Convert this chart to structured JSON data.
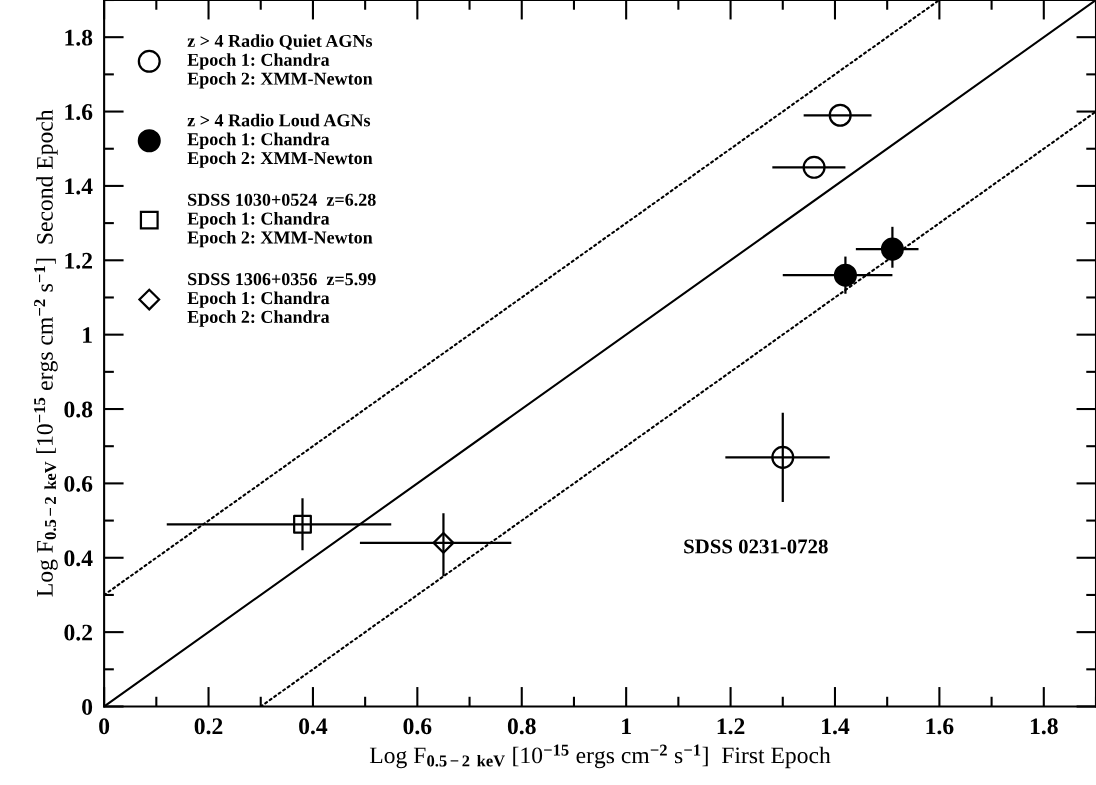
{
  "chart_data": {
    "type": "scatter",
    "xlabel": "Log F$_{0.5−2}$ $_{keV}$ [10$^{−15}$ ergs cm$^{−2}$ s$^{−1}$]  First Epoch",
    "ylabel": "Log F$_{0.5−2}$ $_{keV}$ [10$^{−15}$ ergs cm$^{−2}$ s$^{−1}$]  Second Epoch",
    "xlim": [
      0,
      1.9
    ],
    "ylim": [
      0,
      1.9
    ],
    "xticks": [
      0,
      0.2,
      0.4,
      0.6,
      0.8,
      1,
      1.2,
      1.4,
      1.6,
      1.8
    ],
    "yticks": [
      0,
      0.2,
      0.4,
      0.6,
      0.8,
      1,
      1.2,
      1.4,
      1.6,
      1.8
    ],
    "grid": false,
    "legend": "top left",
    "annotations": [
      "SDSS 0231-0728"
    ],
    "series": [
      {
        "name": "z > 4 Radio Quiet AGNs\nEpoch 1: Chandra\nEpoch 2: XMM-Newton",
        "marker": "circle",
        "color": "#ffffff",
        "x": [
          1.41,
          1.36,
          1.3
        ],
        "values": [
          1.59,
          1.45,
          0.67
        ],
        "xerrors": [
          [
            1.34,
            1.47
          ],
          [
            1.28,
            1.42
          ],
          [
            1.19,
            1.39
          ]
        ],
        "errors": [
          null,
          null,
          [
            0.55,
            0.79
          ]
        ]
      },
      {
        "name": "z > 4 Radio Loud AGNs\nEpoch 1: Chandra\nEpoch 2: XMM-Newton",
        "marker": "circle",
        "color": "#000000",
        "x": [
          1.42,
          1.51
        ],
        "values": [
          1.16,
          1.23
        ],
        "xerrors": [
          [
            1.3,
            1.51
          ],
          [
            1.44,
            1.56
          ]
        ],
        "errors": [
          [
            1.11,
            1.21
          ],
          [
            1.18,
            1.29
          ]
        ]
      },
      {
        "name": "SDSS 1030+0524  z=6.28\nEpoch 1: Chandra\nEpoch 2: XMM-Newton",
        "marker": "square",
        "color": "#ffffff",
        "x": [
          0.38
        ],
        "values": [
          0.49
        ],
        "xerrors": [
          [
            0.12,
            0.55
          ]
        ],
        "errors": [
          [
            0.42,
            0.56
          ]
        ]
      },
      {
        "name": "SDSS 1306+0356  z=5.99\nEpoch 1: Chandra\nEpoch 2: Chandra",
        "marker": "diamond",
        "color": "#ffffff",
        "x": [
          0.65
        ],
        "values": [
          0.44
        ],
        "xerrors": [
          [
            0.49,
            0.78
          ]
        ],
        "errors": [
          [
            0.35,
            0.52
          ]
        ]
      },
      {
        "type": "line",
        "line_style": "solid",
        "color": "#000000",
        "x": [
          0,
          1.9
        ],
        "values": [
          0,
          1.9
        ]
      },
      {
        "type": "line",
        "line_style": "dotted",
        "color": "#000000",
        "x": [
          0,
          1.6
        ],
        "values": [
          0.3,
          1.9
        ]
      },
      {
        "type": "line",
        "line_style": "dotted",
        "color": "#000000",
        "x": [
          0.3,
          1.9
        ],
        "values": [
          0,
          1.6
        ]
      }
    ]
  }
}
